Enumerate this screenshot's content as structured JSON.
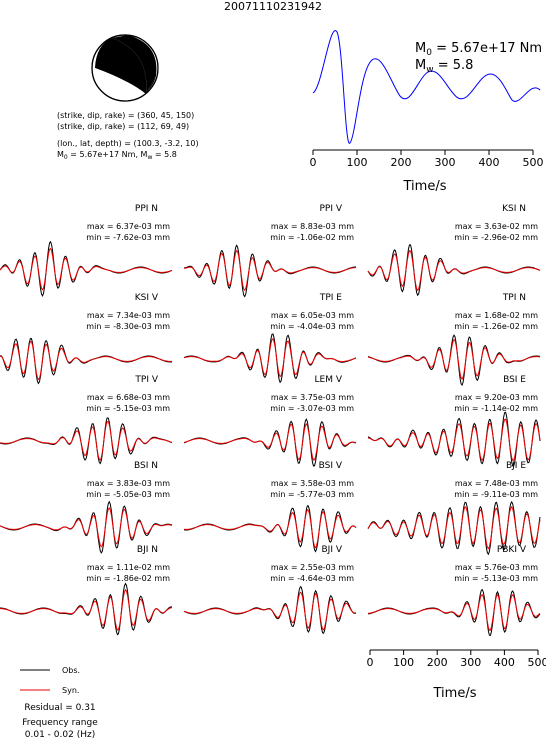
{
  "title": "20071110231942",
  "mechanism": {
    "lines": [
      "(strike, dip, rake) = (360, 45, 150)",
      "(strike, dip, rake) = (112, 69, 49)",
      "(lon., lat, depth) = (100.3, -3.2, 10)"
    ],
    "moment": {
      "m": "M",
      "m_sub": "0",
      "m_text": " = 5.67e+17 Nm, M",
      "w_sub": "w",
      "w_text": " = 5.8"
    }
  },
  "stf": {
    "m0": {
      "m": "M",
      "sub": "0",
      "text": " = 5.67e+17 Nm"
    },
    "mw": {
      "m": "M",
      "sub": "w",
      "text": " = 5.8"
    },
    "xlabel": "Time/s",
    "xlim": [
      0,
      500
    ],
    "xticks": [
      0,
      100,
      200,
      300,
      400,
      500
    ]
  },
  "panels": [
    {
      "station": "PPI N",
      "max": "max = 6.37e-03 mm",
      "min": "min = -7.62e-03 mm"
    },
    {
      "station": "PPI V",
      "max": "max = 8.83e-03 mm",
      "min": "min = -1.06e-02 mm"
    },
    {
      "station": "KSI N",
      "max": "max = 3.63e-02 mm",
      "min": "min = -2.96e-02 mm"
    },
    {
      "station": "KSI V",
      "max": "max = 7.34e-03 mm",
      "min": "min = -8.30e-03 mm"
    },
    {
      "station": "TPI E",
      "max": "max = 6.05e-03 mm",
      "min": "min = -4.04e-03 mm"
    },
    {
      "station": "TPI N",
      "max": "max = 1.68e-02 mm",
      "min": "min = -1.26e-02 mm"
    },
    {
      "station": "TPI V",
      "max": "max = 6.68e-03 mm",
      "min": "min = -5.15e-03 mm"
    },
    {
      "station": "LEM V",
      "max": "max = 3.75e-03 mm",
      "min": "min = -3.07e-03 mm"
    },
    {
      "station": "BSI E",
      "max": "max = 9.20e-03 mm",
      "min": "min = -1.14e-02 mm"
    },
    {
      "station": "BSI N",
      "max": "max = 3.83e-03 mm",
      "min": "min = -5.05e-03 mm"
    },
    {
      "station": "BSI V",
      "max": "max = 3.58e-03 mm",
      "min": "min = -5.77e-03 mm"
    },
    {
      "station": "BJI E",
      "max": "max = 7.48e-03 mm",
      "min": "min = -9.11e-03 mm"
    },
    {
      "station": "BJI N",
      "max": "max = 1.11e-02 mm",
      "min": "min = -1.86e-02 mm"
    },
    {
      "station": "BJI V",
      "max": "max = 2.55e-03 mm",
      "min": "min = -4.64e-03 mm"
    },
    {
      "station": "PBKI V",
      "max": "max = 5.76e-03 mm",
      "min": "min = -5.13e-03 mm"
    }
  ],
  "wave_axis": {
    "xlabel": "Time/s",
    "xlim": [
      0,
      500
    ],
    "xticks": [
      0,
      100,
      200,
      300,
      400,
      500
    ]
  },
  "legend": {
    "obs": "Obs.",
    "syn": "Syn.",
    "residual": "Residual = 0.31",
    "freq_title": "Frequency range",
    "freq": "0.01 - 0.02 (Hz)"
  }
}
